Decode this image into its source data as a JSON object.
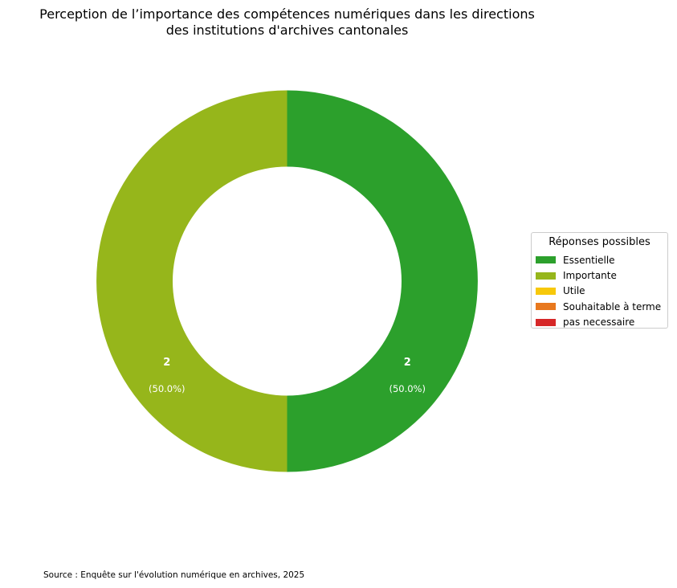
{
  "chart_data": {
    "type": "pie",
    "title_lines": [
      "Perception de l’importance des compétences numériques dans les directions",
      "des institutions d'archives cantonales"
    ],
    "categories": [
      "Essentielle",
      "Importante",
      "Utile",
      "Souhaitable à terme",
      "pas necessaire"
    ],
    "values": [
      2,
      2,
      0,
      0,
      0
    ],
    "percent_labels": [
      "(50.0%)",
      "(50.0%)"
    ],
    "colors": [
      "#2ca02c",
      "#96b61b",
      "#f7c80a",
      "#e8781e",
      "#d62728"
    ],
    "donut": true,
    "legend": {
      "title": "Réponses possibles",
      "placement": "right"
    }
  },
  "source": "Source : Enquête sur l'évolution numérique en archives, 2025"
}
